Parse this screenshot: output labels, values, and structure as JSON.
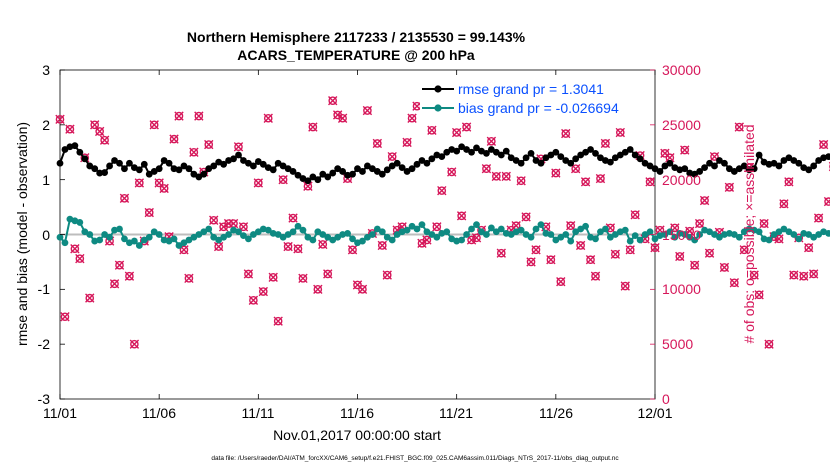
{
  "colors": {
    "rmse": "#000000",
    "bias": "#0e8a82",
    "obs": "#d6175a",
    "legend_text": "#0a50ff",
    "zero_line": "#bdbdbd"
  },
  "chart_data": {
    "type": "line",
    "title_line1": "Northern Hemisphere 2117233 / 2135530 = 99.143%",
    "title_line2": "ACARS_TEMPERATURE @ 200 hPa",
    "xlabel": "Nov.01,2017 00:00:00 start",
    "ylabel_left": "rmse and bias (model - observation)",
    "ylabel_right": "# of obs: o=possible; ×=assimilated",
    "ylim_left": [
      -3,
      3
    ],
    "ylim_right": [
      0,
      30000
    ],
    "xlim_days": [
      0,
      30
    ],
    "x_ticks": [
      {
        "day": 0,
        "label": "11/01"
      },
      {
        "day": 5,
        "label": "11/06"
      },
      {
        "day": 10,
        "label": "11/11"
      },
      {
        "day": 15,
        "label": "11/16"
      },
      {
        "day": 20,
        "label": "11/21"
      },
      {
        "day": 25,
        "label": "11/26"
      },
      {
        "day": 30,
        "label": "12/01"
      }
    ],
    "y_ticks_left": [
      "3",
      "2",
      "1",
      "0",
      "-1",
      "-2",
      "-3"
    ],
    "y_ticks_right": [
      "30000",
      "25000",
      "20000",
      "15000",
      "10000",
      "5000",
      "0"
    ],
    "legend": [
      {
        "label": "rmse grand pr = 1.3041",
        "series": "rmse"
      },
      {
        "label": "bias grand pr = -0.026694",
        "series": "bias"
      }
    ],
    "time_step_hours": 6,
    "series": [
      {
        "name": "rmse",
        "axis": "left",
        "values": [
          1.3,
          1.55,
          1.6,
          1.62,
          1.5,
          1.38,
          1.25,
          1.2,
          1.12,
          1.13,
          1.25,
          1.35,
          1.3,
          1.2,
          1.3,
          1.22,
          1.18,
          1.28,
          1.1,
          1.15,
          1.2,
          1.35,
          1.3,
          1.2,
          1.18,
          1.25,
          1.2,
          1.1,
          1.05,
          1.1,
          1.2,
          1.25,
          1.32,
          1.28,
          1.35,
          1.38,
          1.45,
          1.35,
          1.3,
          1.25,
          1.33,
          1.28,
          1.22,
          1.18,
          1.3,
          1.25,
          1.2,
          1.15,
          1.08,
          1.02,
          0.98,
          1.05,
          1.0,
          1.1,
          1.05,
          1.12,
          1.2,
          1.15,
          1.08,
          1.1,
          1.2,
          1.15,
          1.25,
          1.2,
          1.15,
          1.1,
          1.18,
          1.25,
          1.3,
          1.22,
          1.15,
          1.2,
          1.28,
          1.35,
          1.3,
          1.38,
          1.45,
          1.42,
          1.5,
          1.55,
          1.52,
          1.6,
          1.55,
          1.5,
          1.58,
          1.52,
          1.48,
          1.55,
          1.5,
          1.45,
          1.52,
          1.4,
          1.35,
          1.3,
          1.4,
          1.48,
          1.35,
          1.3,
          1.4,
          1.45,
          1.5,
          1.42,
          1.35,
          1.3,
          1.38,
          1.45,
          1.5,
          1.55,
          1.48,
          1.4,
          1.35,
          1.32,
          1.4,
          1.45,
          1.5,
          1.55,
          1.45,
          1.38,
          1.3,
          1.25,
          1.2,
          1.15,
          1.25,
          1.3,
          1.22,
          1.18,
          1.2,
          1.12,
          1.1,
          1.15,
          1.22,
          1.3,
          1.25,
          1.35,
          1.3,
          1.2,
          1.15,
          1.2,
          1.25,
          1.18,
          1.2,
          1.45,
          1.32,
          1.28,
          1.3,
          1.25,
          1.35,
          1.4,
          1.35,
          1.3,
          1.22,
          1.18,
          1.25,
          1.35,
          1.4,
          1.42,
          1.35,
          1.3,
          1.28,
          1.35,
          1.3,
          1.25,
          1.28,
          1.22,
          1.25,
          1.2,
          1.22,
          1.18,
          1.2,
          1.15
        ]
      },
      {
        "name": "bias",
        "axis": "left",
        "values": [
          -0.05,
          -0.15,
          0.28,
          0.25,
          0.22,
          0.05,
          0.0,
          -0.12,
          -0.1,
          0.0,
          -0.05,
          0.08,
          0.1,
          -0.08,
          -0.15,
          -0.12,
          -0.2,
          -0.1,
          -0.05,
          0.05,
          0.0,
          -0.1,
          -0.12,
          -0.08,
          -0.2,
          -0.15,
          -0.1,
          -0.05,
          0.0,
          0.05,
          0.1,
          -0.05,
          -0.1,
          -0.05,
          0.0,
          0.08,
          0.05,
          -0.02,
          -0.08,
          0.0,
          0.05,
          0.1,
          0.08,
          0.02,
          0.0,
          -0.05,
          0.0,
          0.05,
          0.15,
          0.08,
          -0.05,
          -0.1,
          0.05,
          0.0,
          -0.05,
          -0.1,
          -0.05,
          0.0,
          0.02,
          -0.08,
          -0.15,
          -0.12,
          -0.05,
          0.0,
          0.1,
          0.05,
          -0.05,
          -0.1,
          0.0,
          0.05,
          0.08,
          0.15,
          0.1,
          0.18,
          0.05,
          0.0,
          -0.05,
          0.02,
          0.05,
          -0.08,
          -0.12,
          -0.1,
          0.0,
          0.1,
          0.18,
          0.05,
          0.0,
          0.12,
          0.05,
          0.1,
          0.02,
          0.0,
          0.05,
          0.08,
          0.0,
          -0.05,
          0.1,
          0.18,
          0.02,
          0.0,
          -0.1,
          -0.05,
          0.0,
          -0.12,
          0.05,
          0.1,
          0.15,
          -0.05,
          -0.08,
          0.05,
          0.1,
          -0.05,
          0.0,
          0.05,
          0.08,
          -0.12,
          -0.02,
          -0.1,
          0.0,
          0.05,
          -0.08,
          -0.02,
          0.0,
          0.05,
          -0.05,
          0.02,
          0.0,
          -0.05,
          -0.1,
          0.0,
          0.08,
          0.05,
          0.0,
          -0.05,
          0.0,
          0.02,
          0.0,
          -0.05,
          0.05,
          0.1,
          0.08,
          0.05,
          -0.08,
          -0.1,
          0.0,
          0.05,
          0.1,
          0.05,
          0.0,
          -0.08,
          0.02,
          0.0,
          -0.05,
          0.0,
          0.05,
          0.02,
          0.0,
          -0.05,
          0.0,
          0.05,
          0.0,
          -0.02,
          0.0,
          0.02,
          0.0,
          -0.05,
          0.0,
          -0.1,
          -0.05,
          0.0,
          -0.08,
          -0.05
        ]
      },
      {
        "name": "obs_possible",
        "axis": "right",
        "values": [
          25500,
          7500,
          24600,
          13700,
          12800,
          22000,
          9200,
          25000,
          24400,
          23600,
          14400,
          10500,
          12200,
          18300,
          11200,
          5000,
          19700,
          14400,
          17000,
          25000,
          19700,
          19200,
          14800,
          23700,
          25800,
          13600,
          11000,
          22500,
          25800,
          20700,
          23200,
          16300,
          13900,
          15700,
          16000,
          16000,
          23000,
          15700,
          11400,
          9000,
          19700,
          9800,
          25600,
          11100,
          7100,
          20000,
          13900,
          16500,
          13700,
          11000,
          19400,
          24800,
          10000,
          14100,
          11400,
          27200,
          25900,
          25600,
          20100,
          13600,
          10400,
          10000,
          26300,
          15100,
          23300,
          14000,
          11300,
          22100,
          15400,
          15700,
          23400,
          25600,
          26700,
          14200,
          14500,
          24500,
          15700,
          19000,
          27000,
          20700,
          24300,
          16700,
          24800,
          14500,
          14700,
          15400,
          21000,
          23500,
          20300,
          13300,
          20300,
          15400,
          15800,
          19900,
          16600,
          12500,
          13600,
          21900,
          15700,
          12700,
          20600,
          10700,
          24200,
          15800,
          21000,
          14000,
          19800,
          12700,
          11200,
          20100,
          23300,
          15600,
          13200,
          24300,
          10300,
          13600,
          16800,
          22200,
          14600,
          19800,
          13800,
          15400,
          22400,
          22000,
          15600,
          13000,
          22700,
          15300,
          12200,
          16000,
          18100,
          13300,
          22100,
          15200,
          12000,
          19300,
          10600,
          24800,
          13600,
          21100,
          11300,
          9500,
          16000,
          5000,
          14800,
          14600,
          17800,
          19800,
          11300,
          14700,
          11200,
          13800,
          11400,
          16500,
          23200,
          18000,
          21200,
          15300,
          23200,
          15200,
          21400,
          12000,
          22900,
          13200,
          22300,
          11900,
          26300,
          11200,
          17300,
          14000,
          24700,
          24800,
          13500,
          29000,
          13400,
          13100,
          14500,
          29700,
          0
        ]
      }
    ]
  },
  "footnote": "data file: /Users/raeder/DAI/ATM_forcXX/CAM6_setup/f.e21.FHIST_BGC.f09_025.CAM6assim.011/Diags_NTrS_2017-11/obs_diag_output.nc"
}
